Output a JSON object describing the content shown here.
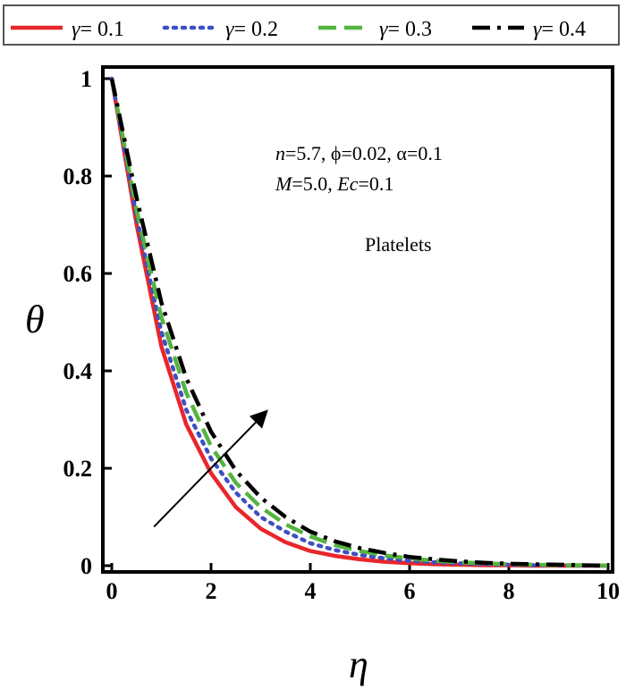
{
  "chart_data": {
    "type": "line",
    "title": "",
    "xlabel": "η",
    "ylabel": "θ",
    "xlim": [
      0,
      10
    ],
    "ylim": [
      0,
      1
    ],
    "xticks": [
      0,
      2,
      4,
      6,
      8,
      10
    ],
    "yticks": [
      0,
      0.2,
      0.4,
      0.6,
      0.8,
      1
    ],
    "xtick_labels": [
      "0",
      "2",
      "4",
      "6",
      "8",
      "10"
    ],
    "ytick_labels": [
      "0",
      "0.2",
      "0.4",
      "0.6",
      "0.8",
      "1"
    ],
    "grid": false,
    "legend_position": "top",
    "x": [
      0,
      0.5,
      1,
      1.5,
      2,
      2.5,
      3,
      3.5,
      4,
      4.5,
      5,
      5.5,
      6,
      6.5,
      7,
      7.5,
      8,
      8.5,
      9,
      9.5,
      10
    ],
    "series": [
      {
        "name_prefix": "γ",
        "name_value": "= 0.1",
        "color": "#e8262b",
        "style": "solid",
        "values": [
          1.0,
          0.7,
          0.45,
          0.29,
          0.19,
          0.12,
          0.076,
          0.048,
          0.03,
          0.02,
          0.013,
          0.008,
          0.005,
          0.003,
          0.002,
          0.001,
          0.001,
          0.0,
          0.0,
          0.0,
          0.0
        ]
      },
      {
        "name_prefix": "γ",
        "name_value": "= 0.2",
        "color": "#3d4fc2",
        "style": "dotted",
        "values": [
          1.0,
          0.715,
          0.48,
          0.32,
          0.22,
          0.15,
          0.1,
          0.07,
          0.046,
          0.032,
          0.022,
          0.015,
          0.01,
          0.007,
          0.005,
          0.003,
          0.002,
          0.001,
          0.001,
          0.0,
          0.0
        ]
      },
      {
        "name_prefix": "γ",
        "name_value": "= 0.3",
        "color": "#55b440",
        "style": "dashed",
        "values": [
          1.0,
          0.73,
          0.51,
          0.355,
          0.245,
          0.17,
          0.12,
          0.085,
          0.06,
          0.042,
          0.03,
          0.021,
          0.015,
          0.01,
          0.007,
          0.005,
          0.003,
          0.002,
          0.001,
          0.001,
          0.0
        ]
      },
      {
        "name_prefix": "γ",
        "name_value": "= 0.4",
        "color": "#000000",
        "style": "dashdot",
        "values": [
          1.0,
          0.755,
          0.54,
          0.385,
          0.275,
          0.195,
          0.14,
          0.1,
          0.07,
          0.05,
          0.036,
          0.026,
          0.018,
          0.013,
          0.009,
          0.006,
          0.004,
          0.003,
          0.002,
          0.001,
          0.0
        ]
      }
    ],
    "annotations": {
      "line1": {
        "n": "n",
        "n_val": "=5.7, ϕ=0.02, α=0.1"
      },
      "line2": {
        "M": "M",
        "M_val": "=5.0, ",
        "Ec": "Ec",
        "Ec_val": "=0.1"
      },
      "label": "Platelets"
    },
    "arrow": {
      "from": [
        0.85,
        0.08
      ],
      "to": [
        3.05,
        0.31
      ],
      "meaning": "increasing γ"
    }
  }
}
